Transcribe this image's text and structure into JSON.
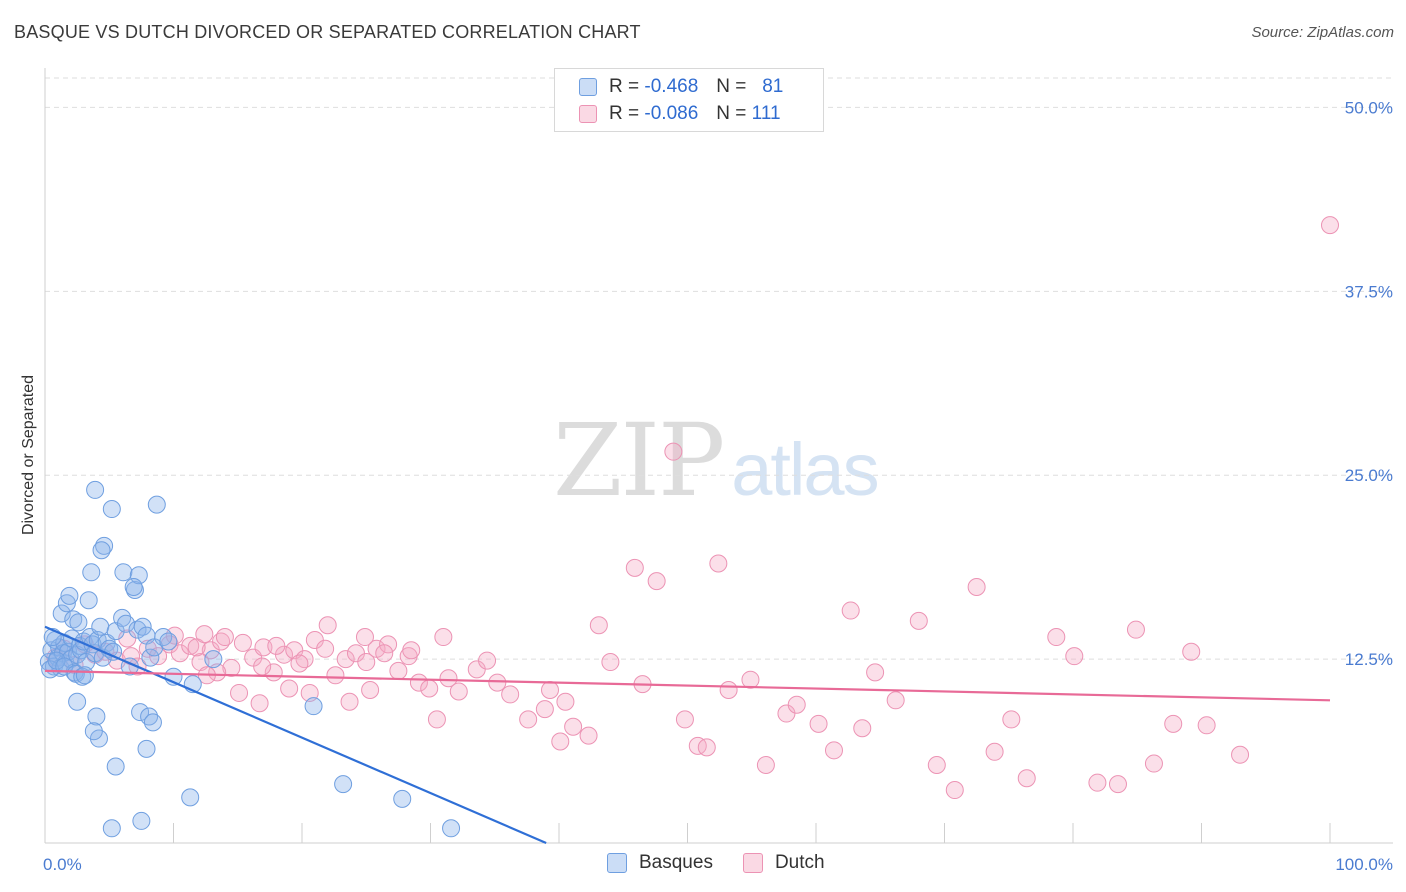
{
  "title": "BASQUE VS DUTCH DIVORCED OR SEPARATED CORRELATION CHART",
  "source": "Source: ZipAtlas.com",
  "watermark": {
    "part1": "ZIP",
    "part2": "atlas"
  },
  "colors": {
    "basque_fill": "rgba(140,180,235,0.40)",
    "basque_stroke": "#6f9fe0",
    "basque_line": "#2f6fd6",
    "dutch_fill": "rgba(244,170,196,0.38)",
    "dutch_stroke": "#ec93b4",
    "dutch_line": "#e86a97",
    "grid": "#dedede",
    "axis_label": "#4a7bd0"
  },
  "legend": {
    "rows": [
      {
        "r_label": "R =",
        "r_value": "-0.468",
        "n_label": "N =",
        "n_value": "81"
      },
      {
        "r_label": "R =",
        "r_value": "-0.086",
        "n_label": "N =",
        "n_value": "111"
      }
    ]
  },
  "bottom_legend": {
    "basque": "Basques",
    "dutch": "Dutch"
  },
  "chart_data": {
    "type": "scatter",
    "title": "BASQUE VS DUTCH DIVORCED OR SEPARATED CORRELATION CHART",
    "xlabel": "",
    "ylabel": "Divorced or Separated",
    "xlim": [
      0,
      100
    ],
    "ylim": [
      0,
      52
    ],
    "y_ticks": [
      12.5,
      25.0,
      37.5,
      50.0
    ],
    "y_tick_labels": [
      "12.5%",
      "25.0%",
      "37.5%",
      "50.0%"
    ],
    "x_tick_labels": [
      "0.0%",
      "100.0%"
    ],
    "series": [
      {
        "name": "Basques",
        "R": -0.468,
        "N": 81,
        "trend": {
          "x": [
            0,
            39
          ],
          "y": [
            14.7,
            0
          ]
        },
        "points": [
          [
            0.3,
            12.3
          ],
          [
            0.5,
            13.1
          ],
          [
            0.7,
            12.0
          ],
          [
            0.8,
            13.8
          ],
          [
            1.0,
            12.6
          ],
          [
            1.1,
            13.3
          ],
          [
            1.2,
            11.9
          ],
          [
            1.4,
            12.9
          ],
          [
            1.5,
            13.6
          ],
          [
            1.6,
            12.2
          ],
          [
            1.8,
            13.0
          ],
          [
            2.0,
            12.5
          ],
          [
            2.1,
            13.9
          ],
          [
            2.3,
            11.6
          ],
          [
            2.5,
            12.8
          ],
          [
            2.7,
            13.4
          ],
          [
            0.4,
            11.8
          ],
          [
            0.6,
            14.0
          ],
          [
            0.9,
            12.4
          ],
          [
            1.3,
            15.6
          ],
          [
            1.5,
            12.0
          ],
          [
            1.7,
            16.3
          ],
          [
            1.9,
            16.8
          ],
          [
            2.2,
            15.2
          ],
          [
            2.4,
            11.5
          ],
          [
            2.6,
            15.0
          ],
          [
            2.8,
            13.1
          ],
          [
            3.0,
            13.7
          ],
          [
            3.2,
            12.3
          ],
          [
            3.4,
            16.5
          ],
          [
            3.5,
            14.0
          ],
          [
            3.7,
            13.5
          ],
          [
            3.9,
            12.9
          ],
          [
            4.1,
            13.8
          ],
          [
            4.3,
            14.7
          ],
          [
            4.5,
            12.6
          ],
          [
            4.8,
            13.6
          ],
          [
            5.0,
            13.2
          ],
          [
            5.3,
            13.0
          ],
          [
            5.5,
            14.4
          ],
          [
            4.6,
            20.2
          ],
          [
            3.6,
            18.4
          ],
          [
            3.9,
            24.0
          ],
          [
            4.4,
            19.9
          ],
          [
            5.2,
            22.7
          ],
          [
            6.1,
            18.4
          ],
          [
            7.0,
            17.2
          ],
          [
            7.3,
            18.2
          ],
          [
            6.0,
            15.3
          ],
          [
            6.3,
            14.9
          ],
          [
            6.6,
            12.0
          ],
          [
            6.9,
            17.4
          ],
          [
            7.2,
            14.5
          ],
          [
            7.6,
            14.7
          ],
          [
            7.9,
            14.1
          ],
          [
            8.2,
            12.6
          ],
          [
            8.5,
            13.3
          ],
          [
            8.7,
            23.0
          ],
          [
            9.2,
            14.0
          ],
          [
            9.6,
            13.7
          ],
          [
            10.0,
            11.3
          ],
          [
            2.9,
            11.3
          ],
          [
            3.1,
            11.4
          ],
          [
            2.5,
            9.6
          ],
          [
            4.0,
            8.6
          ],
          [
            5.5,
            5.2
          ],
          [
            4.2,
            7.1
          ],
          [
            3.8,
            7.6
          ],
          [
            7.4,
            8.9
          ],
          [
            8.1,
            8.6
          ],
          [
            8.4,
            8.2
          ],
          [
            7.9,
            6.4
          ],
          [
            11.5,
            10.8
          ],
          [
            13.1,
            12.5
          ],
          [
            11.3,
            3.1
          ],
          [
            20.9,
            9.3
          ],
          [
            23.2,
            4.0
          ],
          [
            27.8,
            3.0
          ],
          [
            31.6,
            1.0
          ],
          [
            5.2,
            1.0
          ],
          [
            7.5,
            1.5
          ]
        ]
      },
      {
        "name": "Dutch",
        "R": -0.086,
        "N": 111,
        "trend": {
          "x": [
            0,
            100
          ],
          "y": [
            11.7,
            9.7
          ]
        },
        "points": [
          [
            0.8,
            12.6
          ],
          [
            1.5,
            13.2
          ],
          [
            2.3,
            12.1
          ],
          [
            3.1,
            13.5
          ],
          [
            3.9,
            12.8
          ],
          [
            4.7,
            13.0
          ],
          [
            5.6,
            12.4
          ],
          [
            6.4,
            13.9
          ],
          [
            7.2,
            12.0
          ],
          [
            8.0,
            13.2
          ],
          [
            8.8,
            12.7
          ],
          [
            9.7,
            13.5
          ],
          [
            10.5,
            12.9
          ],
          [
            11.3,
            13.4
          ],
          [
            12.1,
            12.3
          ],
          [
            12.9,
            13.1
          ],
          [
            13.7,
            13.7
          ],
          [
            14.5,
            11.9
          ],
          [
            15.4,
            13.6
          ],
          [
            16.2,
            12.6
          ],
          [
            17.0,
            13.3
          ],
          [
            17.8,
            11.6
          ],
          [
            18.6,
            12.8
          ],
          [
            19.4,
            13.1
          ],
          [
            20.2,
            12.5
          ],
          [
            21.0,
            13.8
          ],
          [
            21.8,
            13.2
          ],
          [
            22.6,
            11.4
          ],
          [
            23.4,
            12.5
          ],
          [
            24.2,
            12.9
          ],
          [
            25.0,
            12.3
          ],
          [
            25.8,
            13.2
          ],
          [
            26.7,
            13.5
          ],
          [
            27.5,
            11.7
          ],
          [
            28.3,
            12.7
          ],
          [
            29.1,
            10.9
          ],
          [
            6.7,
            12.7
          ],
          [
            10.1,
            14.1
          ],
          [
            11.8,
            13.3
          ],
          [
            12.4,
            14.2
          ],
          [
            14.0,
            14.0
          ],
          [
            16.9,
            12.0
          ],
          [
            18.0,
            13.4
          ],
          [
            19.8,
            12.2
          ],
          [
            22.0,
            14.8
          ],
          [
            24.9,
            14.0
          ],
          [
            26.4,
            12.9
          ],
          [
            29.9,
            10.5
          ],
          [
            31.4,
            11.2
          ],
          [
            32.2,
            10.3
          ],
          [
            33.6,
            11.8
          ],
          [
            34.4,
            12.4
          ],
          [
            35.2,
            10.9
          ],
          [
            36.2,
            10.1
          ],
          [
            37.6,
            8.4
          ],
          [
            38.9,
            9.1
          ],
          [
            39.3,
            10.4
          ],
          [
            40.5,
            9.6
          ],
          [
            41.1,
            7.9
          ],
          [
            43.1,
            14.8
          ],
          [
            44.0,
            12.3
          ],
          [
            45.9,
            18.7
          ],
          [
            46.5,
            10.8
          ],
          [
            47.6,
            17.8
          ],
          [
            48.9,
            26.6
          ],
          [
            49.8,
            8.4
          ],
          [
            50.8,
            6.6
          ],
          [
            51.5,
            6.5
          ],
          [
            52.4,
            19.0
          ],
          [
            53.2,
            10.4
          ],
          [
            54.9,
            11.1
          ],
          [
            56.1,
            5.3
          ],
          [
            57.7,
            8.8
          ],
          [
            58.5,
            9.4
          ],
          [
            60.2,
            8.1
          ],
          [
            61.4,
            6.3
          ],
          [
            62.7,
            15.8
          ],
          [
            63.6,
            7.8
          ],
          [
            64.6,
            11.6
          ],
          [
            66.2,
            9.7
          ],
          [
            68.0,
            15.1
          ],
          [
            69.4,
            5.3
          ],
          [
            70.8,
            3.6
          ],
          [
            72.5,
            17.4
          ],
          [
            73.9,
            6.2
          ],
          [
            75.2,
            8.4
          ],
          [
            76.4,
            4.4
          ],
          [
            78.7,
            14.0
          ],
          [
            80.1,
            12.7
          ],
          [
            81.9,
            4.1
          ],
          [
            83.5,
            4.0
          ],
          [
            84.9,
            14.5
          ],
          [
            86.3,
            5.4
          ],
          [
            87.8,
            8.1
          ],
          [
            89.2,
            13.0
          ],
          [
            90.4,
            8.0
          ],
          [
            93.0,
            6.0
          ],
          [
            100.0,
            42.0
          ],
          [
            40.1,
            6.9
          ],
          [
            42.3,
            7.3
          ],
          [
            31.0,
            14.0
          ],
          [
            28.5,
            13.1
          ],
          [
            25.3,
            10.4
          ],
          [
            23.7,
            9.6
          ],
          [
            20.6,
            10.2
          ],
          [
            19.0,
            10.5
          ],
          [
            16.7,
            9.5
          ],
          [
            15.1,
            10.2
          ],
          [
            13.4,
            11.6
          ],
          [
            12.6,
            11.4
          ],
          [
            30.5,
            8.4
          ]
        ]
      }
    ]
  }
}
